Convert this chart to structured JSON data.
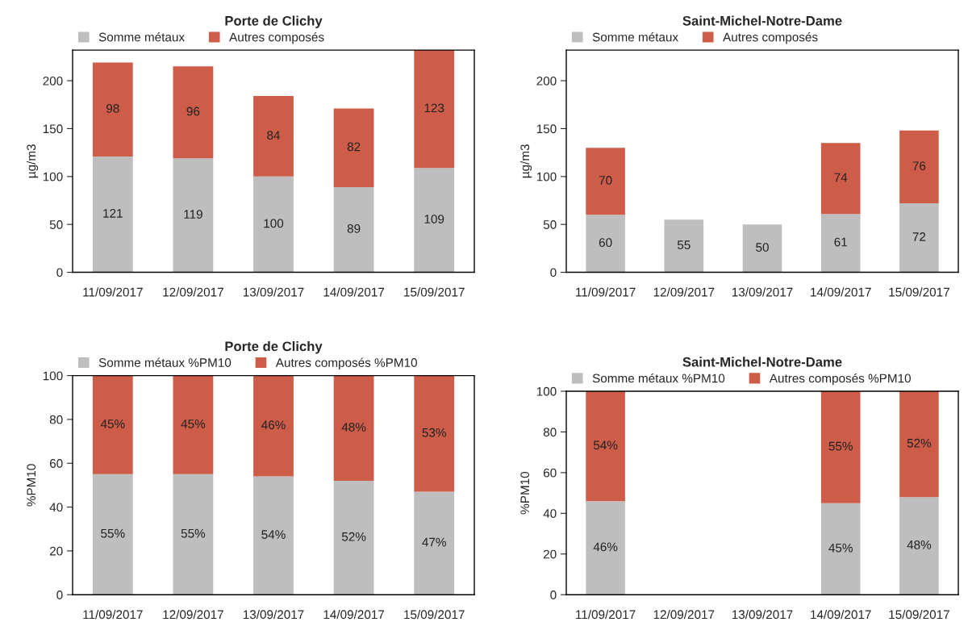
{
  "chart_data": [
    {
      "type": "bar",
      "title": "Porte de Clichy",
      "ylabel": "µg/m3",
      "stacked": true,
      "legend": "top left",
      "data_labels": true,
      "grid": false,
      "categories": [
        "11/09/2017",
        "12/09/2017",
        "13/09/2017",
        "14/09/2017",
        "15/09/2017"
      ],
      "series": [
        {
          "name": "Somme métaux",
          "color": "#bebebe",
          "values": [
            121,
            119,
            100,
            89,
            109
          ]
        },
        {
          "name": "Autres composés",
          "color": "#cd5c48",
          "values": [
            98,
            96,
            84,
            82,
            123
          ]
        }
      ],
      "ylim": [
        0,
        232
      ],
      "yticks": [
        0,
        50,
        100,
        150,
        200
      ]
    },
    {
      "type": "bar",
      "title": "Saint-Michel-Notre-Dame",
      "ylabel": "µg/m3",
      "stacked": true,
      "legend": "top left",
      "data_labels": true,
      "grid": false,
      "categories": [
        "11/09/2017",
        "12/09/2017",
        "13/09/2017",
        "14/09/2017",
        "15/09/2017"
      ],
      "series": [
        {
          "name": "Somme métaux",
          "color": "#bebebe",
          "values": [
            60,
            55,
            50,
            61,
            72
          ]
        },
        {
          "name": "Autres composés",
          "color": "#cd5c48",
          "values": [
            70,
            null,
            null,
            74,
            76
          ]
        }
      ],
      "ylim": [
        0,
        232
      ],
      "yticks": [
        0,
        50,
        100,
        150,
        200
      ]
    },
    {
      "type": "bar",
      "title": "Porte de Clichy",
      "ylabel": "%PM10",
      "stacked": true,
      "legend": "top left",
      "grid": false,
      "categories": [
        "11/09/2017",
        "12/09/2017",
        "13/09/2017",
        "14/09/2017",
        "15/09/2017"
      ],
      "series": [
        {
          "name": "Somme métaux %PM10",
          "color": "#bebebe",
          "values": [
            55,
            55,
            54,
            52,
            47
          ],
          "value_labels": [
            "55%",
            "55%",
            "54%",
            "52%",
            "47%"
          ]
        },
        {
          "name": "Autres composés %PM10",
          "color": "#cd5c48",
          "values": [
            45,
            45,
            46,
            48,
            53
          ],
          "value_labels": [
            "45%",
            "45%",
            "46%",
            "48%",
            "53%"
          ]
        }
      ],
      "ylim": [
        0,
        100
      ],
      "yticks": [
        0,
        20,
        40,
        60,
        80,
        100
      ]
    },
    {
      "type": "bar",
      "title": "Saint-Michel-Notre-Dame",
      "ylabel": "%PM10",
      "stacked": true,
      "legend": "top left",
      "grid": false,
      "categories": [
        "11/09/2017",
        "12/09/2017",
        "13/09/2017",
        "14/09/2017",
        "15/09/2017"
      ],
      "series": [
        {
          "name": "Somme métaux %PM10",
          "color": "#bebebe",
          "values": [
            46,
            null,
            null,
            45,
            48
          ],
          "value_labels": [
            "46%",
            null,
            null,
            "45%",
            "48%"
          ]
        },
        {
          "name": "Autres composés %PM10",
          "color": "#cd5c48",
          "values": [
            54,
            null,
            null,
            55,
            52
          ],
          "value_labels": [
            "54%",
            null,
            null,
            "55%",
            "52%"
          ]
        }
      ],
      "ylim": [
        0,
        100
      ],
      "yticks": [
        0,
        20,
        40,
        60,
        80,
        100
      ]
    }
  ]
}
